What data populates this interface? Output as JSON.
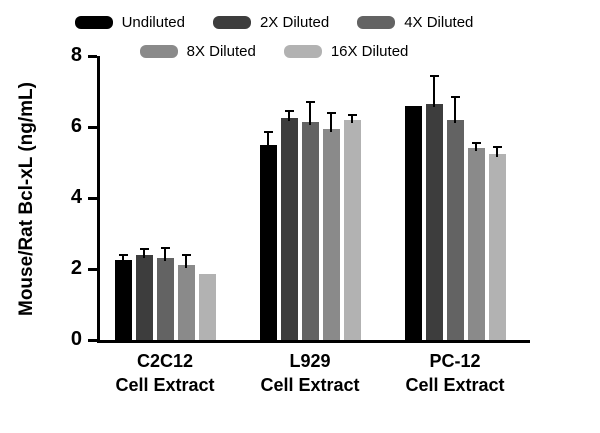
{
  "chart_data": {
    "type": "bar",
    "title": "",
    "ylabel": "Mouse/Rat Bcl-xL (ng/mL)",
    "xlabel": "",
    "ylim": [
      0,
      8
    ],
    "yticks": [
      0,
      2,
      4,
      6,
      8
    ],
    "grid": false,
    "legend_position": "top",
    "categories": [
      {
        "name": "C2C12",
        "sub": "Cell Extract"
      },
      {
        "name": "L929",
        "sub": "Cell Extract"
      },
      {
        "name": "PC-12",
        "sub": "Cell Extract"
      }
    ],
    "series": [
      {
        "name": "Undiluted",
        "color": "#000000",
        "values": [
          2.25,
          5.5,
          6.6
        ],
        "errors": [
          0.15,
          0.37,
          0
        ]
      },
      {
        "name": "2X Diluted",
        "color": "#3d3d3d",
        "values": [
          2.4,
          6.25,
          6.65
        ],
        "errors": [
          0.15,
          0.2,
          0.8
        ]
      },
      {
        "name": "4X Diluted",
        "color": "#636363",
        "values": [
          2.3,
          6.15,
          6.2
        ],
        "errors": [
          0.3,
          0.55,
          0.65
        ]
      },
      {
        "name": "8X Diluted",
        "color": "#8a8a8a",
        "values": [
          2.1,
          5.95,
          5.4
        ],
        "errors": [
          0.3,
          0.45,
          0.15
        ]
      },
      {
        "name": "16X Diluted",
        "color": "#b2b2b2",
        "values": [
          1.85,
          6.2,
          5.25
        ],
        "errors": [
          0,
          0.15,
          0.2
        ]
      }
    ]
  }
}
